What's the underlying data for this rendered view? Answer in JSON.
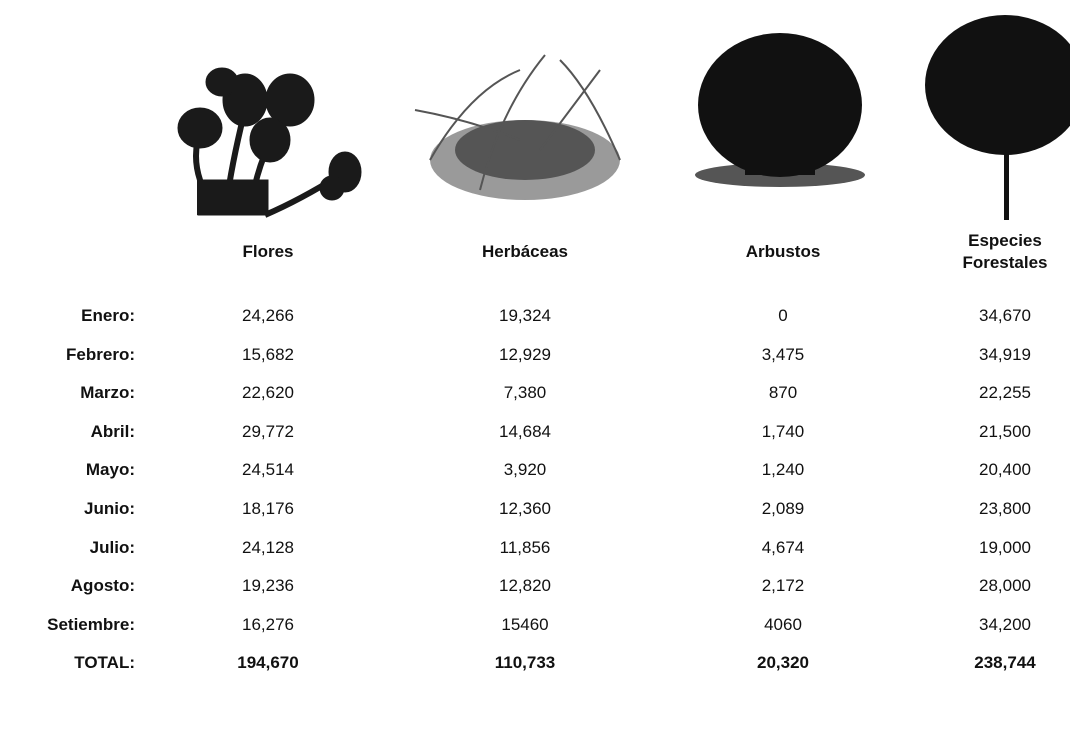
{
  "table": {
    "header": [
      "Flores",
      "Herbáceas",
      "Arbustos",
      "Especies Forestales"
    ],
    "rows": [
      [
        "Enero:",
        "24,266",
        "19,324",
        "0",
        "34,670"
      ],
      [
        "Febrero:",
        "15,682",
        "12,929",
        "3,475",
        "34,919"
      ],
      [
        "Marzo:",
        "22,620",
        "7,380",
        "870",
        "22,255"
      ],
      [
        "Abril:",
        "29,772",
        "14,684",
        "1,740",
        "21,500"
      ],
      [
        "Mayo:",
        "24,514",
        "3,920",
        "1,240",
        "20,400"
      ],
      [
        "Junio:",
        "18,176",
        "12,360",
        "2,089",
        "23,800"
      ],
      [
        "Julio:",
        "24,128",
        "11,856",
        "4,674",
        "19,000"
      ],
      [
        "Agosto:",
        "19,236",
        "12,820",
        "2,172",
        "28,000"
      ],
      [
        "Setiembre:",
        "16,276",
        "15460",
        "4060",
        "34,200"
      ],
      [
        "TOTAL:",
        "194,670",
        "110,733",
        "20,320",
        "238,744"
      ]
    ]
  }
}
